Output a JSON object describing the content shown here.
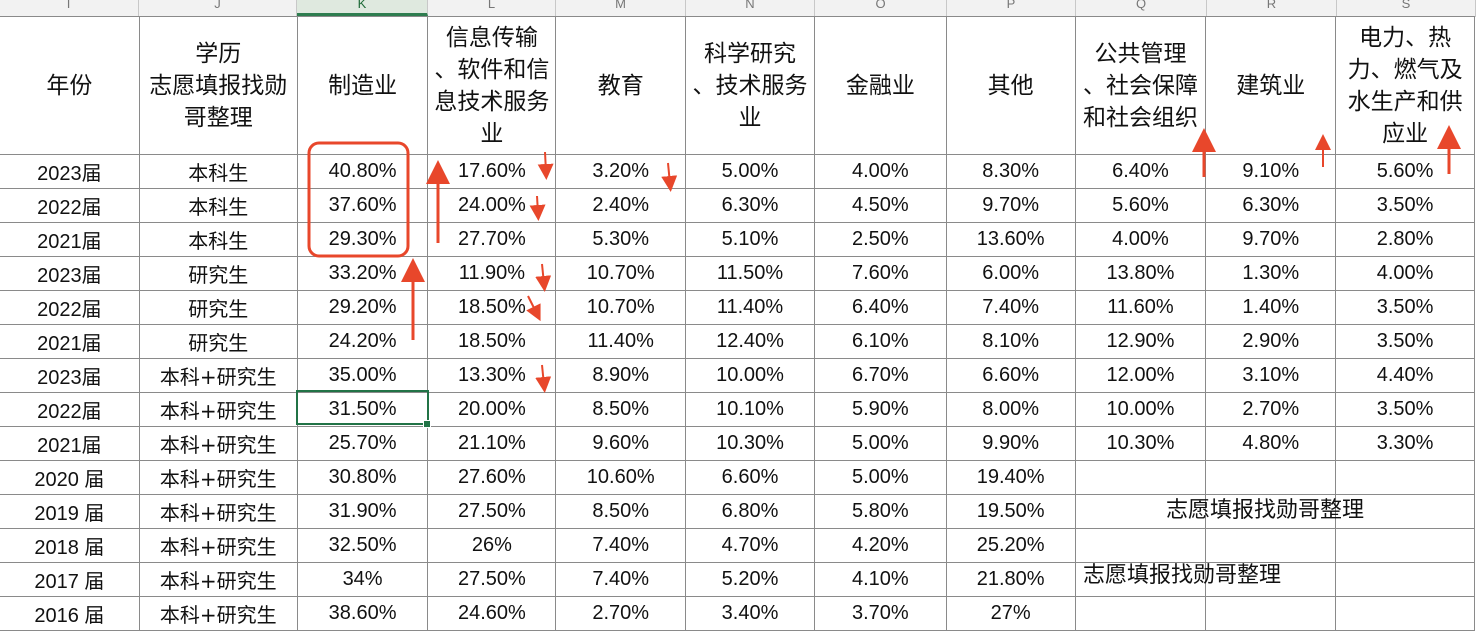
{
  "sheet": {
    "column_letters": [
      "I",
      "J",
      "K",
      "L",
      "M",
      "N",
      "O",
      "P",
      "Q",
      "R",
      "S"
    ],
    "active_column": "K",
    "headers": [
      "年份",
      "学历\n志愿填报找勋\n哥整理",
      "制造业",
      "信息传输\n、软件和信\n息技术服务\n业",
      "教育",
      "科学研究\n、技术服务\n业",
      "金融业",
      "其他",
      "公共管理\n、社会保障\n和社会组织",
      "建筑业",
      "电力、热\n力、燃气及\n水生产和供\n应业"
    ],
    "rows": [
      [
        "2023届",
        "本科生",
        "40.80%",
        "17.60%",
        "3.20%",
        "5.00%",
        "4.00%",
        "8.30%",
        "6.40%",
        "9.10%",
        "5.60%"
      ],
      [
        "2022届",
        "本科生",
        "37.60%",
        "24.00%",
        "2.40%",
        "6.30%",
        "4.50%",
        "9.70%",
        "5.60%",
        "6.30%",
        "3.50%"
      ],
      [
        "2021届",
        "本科生",
        "29.30%",
        "27.70%",
        "5.30%",
        "5.10%",
        "2.50%",
        "13.60%",
        "4.00%",
        "9.70%",
        "2.80%"
      ],
      [
        "2023届",
        "研究生",
        "33.20%",
        "11.90%",
        "10.70%",
        "11.50%",
        "7.60%",
        "6.00%",
        "13.80%",
        "1.30%",
        "4.00%"
      ],
      [
        "2022届",
        "研究生",
        "29.20%",
        "18.50%",
        "10.70%",
        "11.40%",
        "6.40%",
        "7.40%",
        "11.60%",
        "1.40%",
        "3.50%"
      ],
      [
        "2021届",
        "研究生",
        "24.20%",
        "18.50%",
        "11.40%",
        "12.40%",
        "6.10%",
        "8.10%",
        "12.90%",
        "2.90%",
        "3.50%"
      ],
      [
        "2023届",
        "本科+研究生",
        "35.00%",
        "13.30%",
        "8.90%",
        "10.00%",
        "6.70%",
        "6.60%",
        "12.00%",
        "3.10%",
        "4.40%"
      ],
      [
        "2022届",
        "本科+研究生",
        "31.50%",
        "20.00%",
        "8.50%",
        "10.10%",
        "5.90%",
        "8.00%",
        "10.00%",
        "2.70%",
        "3.50%"
      ],
      [
        "2021届",
        "本科+研究生",
        "25.70%",
        "21.10%",
        "9.60%",
        "10.30%",
        "5.00%",
        "9.90%",
        "10.30%",
        "4.80%",
        "3.30%"
      ],
      [
        "2020 届",
        "本科+研究生",
        "30.80%",
        "27.60%",
        "10.60%",
        "6.60%",
        "5.00%",
        "19.40%",
        "",
        "",
        ""
      ],
      [
        "2019 届",
        "本科+研究生",
        "31.90%",
        "27.50%",
        "8.50%",
        "6.80%",
        "5.80%",
        "19.50%",
        "",
        "",
        ""
      ],
      [
        "2018 届",
        "本科+研究生",
        "32.50%",
        "26%",
        "7.40%",
        "4.70%",
        "4.20%",
        "25.20%",
        "",
        "",
        ""
      ],
      [
        "2017 届",
        "本科+研究生",
        "34%",
        "27.50%",
        "7.40%",
        "5.20%",
        "4.10%",
        "21.80%",
        "",
        "",
        ""
      ],
      [
        "2016 届",
        "本科+研究生",
        "38.60%",
        "24.60%",
        "2.70%",
        "3.40%",
        "3.70%",
        "27%",
        "",
        "",
        ""
      ]
    ],
    "watermark_1": "志愿填报找勋哥整理",
    "watermark_2": "志愿填报找勋哥整理",
    "selected_cell": "K9"
  },
  "colors": {
    "annotation_red": "#e8472b",
    "selection_green": "#217346",
    "grid_border": "#8a8a8a"
  }
}
